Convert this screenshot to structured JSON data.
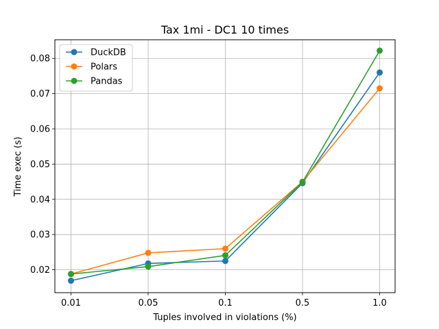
{
  "chart_data": {
    "type": "line",
    "title": "Tax 1mi - DC1 10 times",
    "xlabel": "Tuples involved in violations (%)",
    "ylabel": "Time exec (s)",
    "categories": [
      "0.01",
      "0.05",
      "0.1",
      "0.5",
      "1.0"
    ],
    "ylim": [
      0.0135,
      0.0853
    ],
    "yticks": [
      "0.02",
      "0.03",
      "0.04",
      "0.05",
      "0.06",
      "0.07",
      "0.08"
    ],
    "grid": true,
    "legend_position": "top-left",
    "markers": "circle",
    "series": [
      {
        "name": "DuckDB",
        "color": "#1f77b4",
        "values": [
          0.0169,
          0.0218,
          0.0225,
          0.0446,
          0.076
        ]
      },
      {
        "name": "Polars",
        "color": "#ff7f0e",
        "values": [
          0.0188,
          0.0248,
          0.026,
          0.045,
          0.0715
        ]
      },
      {
        "name": "Pandas",
        "color": "#2ca02c",
        "values": [
          0.0188,
          0.0209,
          0.0241,
          0.0449,
          0.0822
        ]
      }
    ]
  }
}
